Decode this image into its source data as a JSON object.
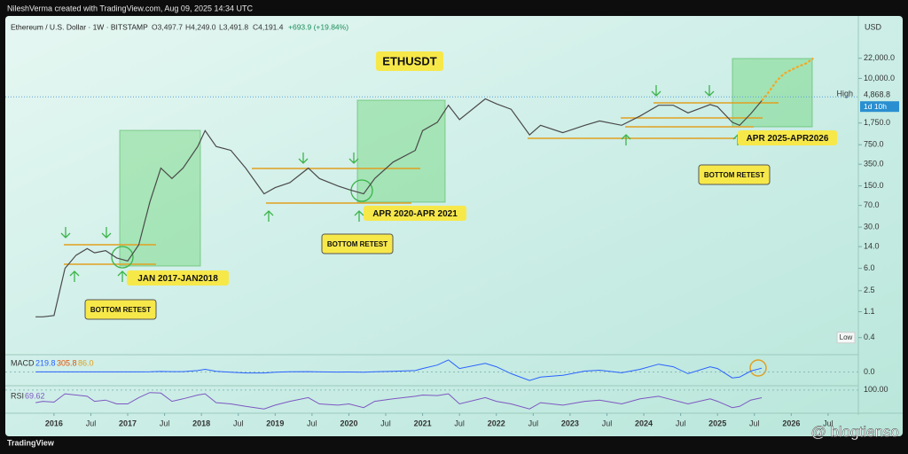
{
  "chart_data": {
    "type": "line",
    "header": "NileshVerma created with TradingView.com, Aug 09, 2025 14:34 UTC",
    "title": "Ethereum / U.S. Dollar · 1W · BITSTAMP",
    "ohlc": [
      "O3,497.7",
      "H4,249.0",
      "L3,491.8",
      "C4,191.4",
      "+693.9 (+19.84%)"
    ],
    "currency": "USD",
    "log_scale": true,
    "grid": false,
    "xlim": [
      2015.34,
      2026.91
    ],
    "xticks": [
      2016,
      {
        "value": 2016.5,
        "label": "Jul"
      },
      2017,
      {
        "value": 2017.5,
        "label": "Jul"
      },
      2018,
      {
        "value": 2018.5,
        "label": "Jul"
      },
      2019,
      {
        "value": 2019.5,
        "label": "Jul"
      },
      2020,
      {
        "value": 2020.5,
        "label": "Jul"
      },
      2021,
      {
        "value": 2021.5,
        "label": "Jul"
      },
      2022,
      {
        "value": 2022.5,
        "label": "Jul"
      },
      2023,
      {
        "value": 2023.5,
        "label": "Jul"
      },
      2024,
      {
        "value": 2024.5,
        "label": "Jul"
      },
      2025,
      {
        "value": 2025.5,
        "label": "Jul"
      },
      2026,
      {
        "value": 2026.5,
        "label": "Jul"
      }
    ],
    "ylim": [
      0.22,
      107000
    ],
    "yticks": [
      {
        "value": 22000,
        "label": "22,000.0"
      },
      {
        "value": 10000,
        "label": "10,000.0"
      },
      {
        "value": 1750,
        "label": "1,750.0"
      },
      {
        "value": 750,
        "label": "750.0"
      },
      {
        "value": 350,
        "label": "350.0"
      },
      {
        "value": 150,
        "label": "150.0"
      },
      {
        "value": 70,
        "label": "70.0"
      },
      {
        "value": 30,
        "label": "30.0"
      },
      {
        "value": 14,
        "label": "14.0"
      },
      {
        "value": 6,
        "label": "6.0"
      },
      2.5,
      1.1
    ],
    "high": {
      "value": 4868.8,
      "label": "4,868.8"
    },
    "high_text": "High",
    "countdown": "1d 10h",
    "low": 0.4,
    "low_text": "Low",
    "x": [
      2015.75,
      2015.85,
      2016.0,
      2016.15,
      2016.3,
      2016.45,
      2016.55,
      2016.7,
      2016.85,
      2017.0,
      2017.15,
      2017.3,
      2017.45,
      2017.6,
      2017.75,
      2017.95,
      2018.05,
      2018.2,
      2018.4,
      2018.6,
      2018.85,
      2019.0,
      2019.2,
      2019.45,
      2019.6,
      2019.85,
      2020.0,
      2020.2,
      2020.35,
      2020.6,
      2020.9,
      2021.0,
      2021.2,
      2021.35,
      2021.5,
      2021.85,
      2022.0,
      2022.2,
      2022.45,
      2022.6,
      2022.9,
      2023.2,
      2023.4,
      2023.7,
      2023.95,
      2024.2,
      2024.4,
      2024.6,
      2024.9,
      2025.0,
      2025.2,
      2025.3,
      2025.45,
      2025.6,
      2025.7,
      2025.8,
      2025.9,
      2026.0,
      2026.1,
      2026.2,
      2026.3
    ],
    "series": [
      {
        "color": "#4a4a4a",
        "values": [
          0.9,
          0.9,
          0.95,
          6,
          10,
          13,
          11,
          12,
          9,
          8,
          15,
          80,
          300,
          200,
          300,
          700,
          1300,
          700,
          600,
          300,
          110,
          140,
          170,
          300,
          200,
          150,
          130,
          110,
          200,
          380,
          600,
          1300,
          1800,
          3500,
          2000,
          4500,
          3700,
          3000,
          1100,
          1600,
          1200,
          1600,
          1900,
          1600,
          2300,
          3500,
          3500,
          2600,
          3600,
          3300,
          1800,
          1600,
          2500,
          4191.4,
          null,
          null,
          null,
          null,
          null,
          null,
          null
        ]
      },
      {
        "color": "#f5a623",
        "values": [
          null,
          null,
          null,
          null,
          null,
          null,
          null,
          null,
          null,
          null,
          null,
          null,
          null,
          null,
          null,
          null,
          null,
          null,
          null,
          null,
          null,
          null,
          null,
          null,
          null,
          null,
          null,
          null,
          null,
          null,
          null,
          null,
          null,
          null,
          null,
          null,
          null,
          null,
          null,
          null,
          null,
          null,
          null,
          null,
          null,
          null,
          null,
          null,
          null,
          null,
          null,
          null,
          null,
          4191.4,
          6000,
          9000,
          12000,
          14000,
          16000,
          18000,
          22000
        ]
      }
    ],
    "annotations": [
      "ETHUSDT",
      "JAN 2017-JAN2018",
      "APR 2020-APR 2021",
      "APR 2025-APR2026",
      "BOTTOM RETEST",
      "BOTTOM RETEST",
      "BOTTOM RETEST"
    ],
    "macd": {
      "name": "MACD",
      "readout": [
        "219.8",
        "305.8",
        "86.0"
      ],
      "color": "#2962ff",
      "ylim": [
        -700,
        900
      ],
      "yticks": [
        {
          "value": 0,
          "label": "0.0"
        }
      ],
      "values": [
        0,
        0,
        0,
        0,
        1,
        1,
        0,
        0,
        0,
        0,
        1,
        5,
        30,
        20,
        15,
        80,
        150,
        40,
        -20,
        -60,
        -60,
        -20,
        5,
        20,
        0,
        -10,
        -5,
        -15,
        10,
        40,
        80,
        200,
        400,
        700,
        200,
        500,
        300,
        -100,
        -500,
        -300,
        -200,
        50,
        100,
        -50,
        150,
        450,
        300,
        -100,
        300,
        200,
        -350,
        -300,
        50,
        219.8,
        null,
        null,
        null,
        null,
        null,
        null,
        null
      ]
    },
    "rsi": {
      "name": "RSI",
      "readout": "69.62",
      "color": "#7e57c2",
      "ylim": [
        15,
        110
      ],
      "yticks": [
        {
          "value": 100,
          "label": "100.00"
        }
      ],
      "values": [
        50,
        55,
        52,
        85,
        80,
        75,
        55,
        60,
        45,
        45,
        70,
        90,
        88,
        55,
        65,
        80,
        85,
        50,
        45,
        35,
        25,
        40,
        55,
        70,
        45,
        40,
        45,
        30,
        55,
        65,
        75,
        80,
        78,
        85,
        45,
        70,
        55,
        45,
        25,
        50,
        40,
        55,
        60,
        45,
        65,
        75,
        60,
        45,
        65,
        55,
        30,
        35,
        60,
        69.62,
        null,
        null,
        null,
        null,
        null,
        null,
        null
      ]
    },
    "footer": "TradingView",
    "watermark": "@ blogtienso"
  }
}
